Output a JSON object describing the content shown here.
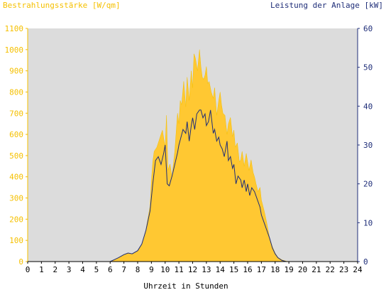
{
  "chart_data": {
    "type": "area",
    "left_axis_label": "Bestrahlungsstärke [W/qm]",
    "right_axis_label": "Leistung der Anlage [kW]",
    "xlabel": "Uhrzeit in Stunden",
    "xlim": [
      0,
      24
    ],
    "ylim_left": [
      0,
      1100
    ],
    "ylim_right": [
      0,
      60
    ],
    "x_ticks": [
      "0",
      "1",
      "2",
      "3",
      "4",
      "5",
      "6",
      "7",
      "8",
      "9",
      "10",
      "11",
      "12",
      "13",
      "14",
      "15",
      "16",
      "17",
      "18",
      "19",
      "20",
      "21",
      "22",
      "23",
      "24"
    ],
    "y_ticks_left": [
      "0",
      "100",
      "200",
      "300",
      "400",
      "500",
      "600",
      "700",
      "800",
      "900",
      "1000",
      "1100"
    ],
    "y_ticks_right": [
      "0",
      "10",
      "20",
      "30",
      "40",
      "50",
      "60"
    ],
    "grid": false,
    "colors": {
      "background": "#dcdcdc",
      "irradiance_fill": "#ffc832",
      "power_line": "#1e2d78",
      "left_axis": "#f5c000",
      "right_axis": "#1e2d78"
    },
    "series": [
      {
        "name": "Bestrahlungsstärke [W/qm]",
        "axis": "left",
        "style": "filled-area",
        "x": [
          0,
          6,
          6.2,
          6.5,
          7,
          7.3,
          7.6,
          8,
          8.3,
          8.6,
          8.9,
          9.0,
          9.1,
          9.2,
          9.4,
          9.6,
          9.8,
          10.0,
          10.1,
          10.2,
          10.35,
          10.5,
          10.7,
          10.9,
          11.0,
          11.1,
          11.2,
          11.35,
          11.5,
          11.6,
          11.75,
          11.9,
          12.0,
          12.1,
          12.2,
          12.35,
          12.5,
          12.6,
          12.7,
          12.8,
          12.9,
          13.0,
          13.1,
          13.2,
          13.35,
          13.5,
          13.6,
          13.75,
          13.9,
          14.0,
          14.1,
          14.2,
          14.35,
          14.5,
          14.6,
          14.75,
          14.9,
          15.0,
          15.1,
          15.25,
          15.4,
          15.5,
          15.6,
          15.75,
          15.9,
          16.0,
          16.1,
          16.25,
          16.4,
          16.5,
          16.6,
          16.75,
          16.9,
          17.0,
          17.2,
          17.4,
          17.6,
          17.8,
          18.0,
          18.2,
          18.5,
          18.8,
          19.0,
          24
        ],
        "values": [
          0,
          0,
          5,
          15,
          30,
          40,
          35,
          50,
          80,
          150,
          260,
          380,
          470,
          520,
          540,
          580,
          620,
          540,
          690,
          430,
          460,
          400,
          520,
          700,
          650,
          760,
          740,
          850,
          730,
          870,
          760,
          900,
          820,
          980,
          960,
          900,
          1000,
          920,
          870,
          860,
          880,
          920,
          840,
          850,
          800,
          770,
          820,
          690,
          760,
          800,
          740,
          700,
          690,
          600,
          650,
          680,
          590,
          620,
          540,
          560,
          470,
          480,
          520,
          450,
          510,
          470,
          430,
          480,
          420,
          400,
          370,
          330,
          350,
          290,
          240,
          180,
          110,
          70,
          40,
          20,
          8,
          2,
          0,
          0
        ]
      },
      {
        "name": "Leistung der Anlage [kW]",
        "axis": "right",
        "style": "line",
        "x": [
          0,
          6,
          6.3,
          6.6,
          7,
          7.3,
          7.6,
          8,
          8.3,
          8.6,
          8.9,
          9.1,
          9.3,
          9.5,
          9.7,
          9.9,
          10.0,
          10.15,
          10.3,
          10.5,
          10.7,
          10.9,
          11.0,
          11.15,
          11.3,
          11.5,
          11.6,
          11.75,
          11.9,
          12.0,
          12.15,
          12.3,
          12.5,
          12.6,
          12.75,
          12.9,
          13.0,
          13.15,
          13.3,
          13.5,
          13.6,
          13.75,
          13.9,
          14.0,
          14.15,
          14.3,
          14.5,
          14.6,
          14.75,
          14.9,
          15.0,
          15.15,
          15.3,
          15.5,
          15.6,
          15.75,
          15.9,
          16.0,
          16.15,
          16.3,
          16.5,
          16.7,
          16.9,
          17.0,
          17.2,
          17.4,
          17.6,
          17.8,
          18.0,
          18.2,
          18.5,
          18.8,
          19.0,
          24
        ],
        "values": [
          0,
          0,
          0.5,
          1,
          1.8,
          2.2,
          2,
          2.8,
          4.5,
          8,
          13,
          20,
          26,
          27,
          25,
          28,
          30,
          20,
          19.5,
          22,
          25,
          28,
          30,
          32,
          34,
          33,
          36,
          31,
          35,
          37,
          34,
          38,
          39,
          39,
          37,
          38,
          35,
          36,
          39,
          33,
          34,
          31,
          32,
          30,
          29,
          27,
          31,
          26,
          27,
          24,
          25,
          20,
          22,
          21,
          19,
          21,
          18,
          20,
          17,
          19,
          18,
          16,
          14,
          12,
          10,
          8,
          6,
          3.5,
          2,
          1,
          0.3,
          0,
          0,
          0
        ]
      }
    ]
  }
}
